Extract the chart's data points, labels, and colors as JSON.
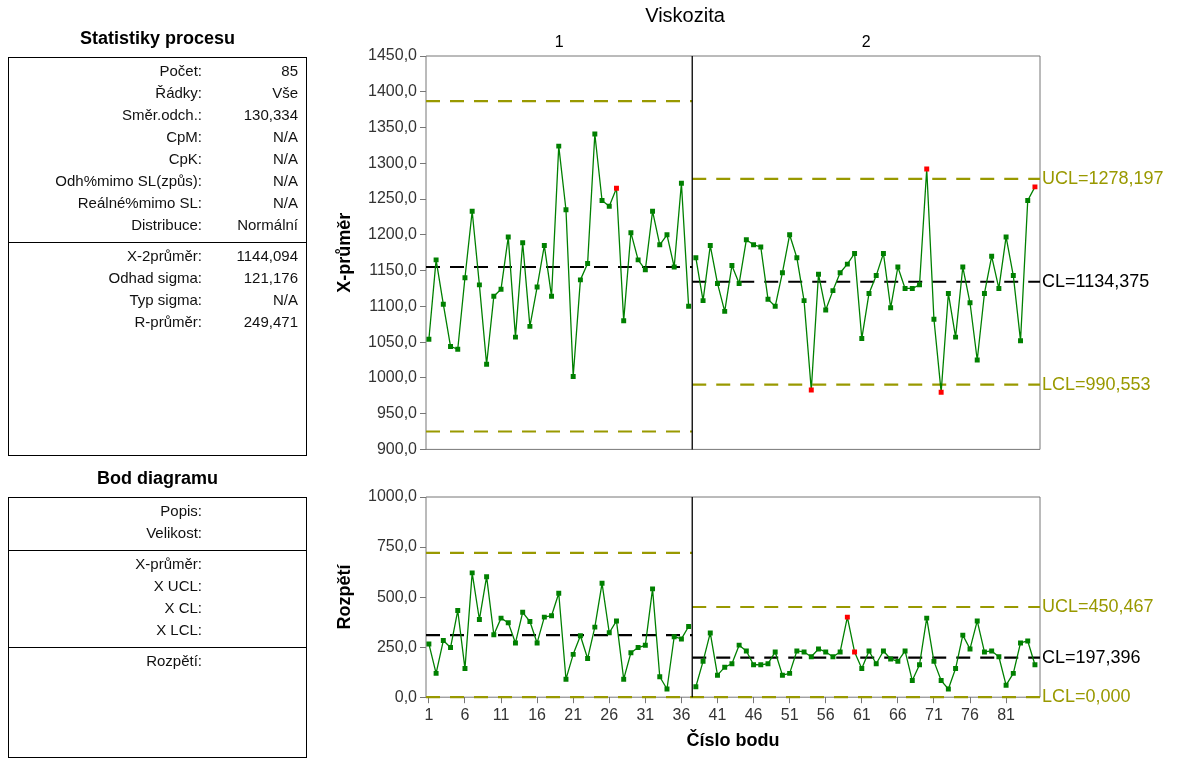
{
  "chart_data": [
    {
      "type": "other",
      "title": "Statistiky procesu",
      "annotations": [
        "Počet:",
        "85",
        "Řádky:",
        "Vše",
        "Směr.odch.:",
        "130,334",
        "CpM:",
        "N/A",
        "CpK:",
        "N/A",
        "Odh%mimo SL(způs):",
        "N/A",
        "Reálné%mimo SL:",
        "N/A",
        "Distribuce:",
        "Normální",
        "X-2průměr:",
        "1144,094",
        "Odhad sigma:",
        "121,176",
        "Typ sigma:",
        "N/A",
        "R-průměr:",
        "249,471"
      ]
    },
    {
      "type": "other",
      "title": "Bod diagramu",
      "annotations": [
        "Popis:",
        "Velikost:",
        "X-průměr:",
        "X UCL:",
        "X CL:",
        "X LCL:",
        "Rozpětí:"
      ]
    },
    {
      "type": "line",
      "title": "Viskozita",
      "ylabel": "X-průměr",
      "xlim": [
        0.6,
        85.7
      ],
      "ylim": [
        900,
        1450
      ],
      "xticks": [
        1,
        6,
        11,
        16,
        21,
        26,
        31,
        36,
        41,
        46,
        51,
        56,
        61,
        66,
        71,
        76,
        81
      ],
      "yticks": [
        {
          "value": 900,
          "label": "900,0"
        },
        {
          "value": 950,
          "label": "950,0"
        },
        {
          "value": 1000,
          "label": "1000,0"
        },
        {
          "value": 1050,
          "label": "1050,0"
        },
        {
          "value": 1100,
          "label": "1100,0"
        },
        {
          "value": 1150,
          "label": "1150,0"
        },
        {
          "value": 1200,
          "label": "1200,0"
        },
        {
          "value": 1250,
          "label": "1250,0"
        },
        {
          "value": 1300,
          "label": "1300,0"
        },
        {
          "value": 1350,
          "label": "1350,0"
        },
        {
          "value": 1400,
          "label": "1400,0"
        },
        {
          "value": 1450,
          "label": "1450,0"
        }
      ],
      "annotations": [
        "1",
        "2"
      ],
      "tick_labels": "y",
      "grid": false,
      "legend": false,
      "marker": "square",
      "line_style": "solid",
      "ref_lines": [
        {
          "axis": "x",
          "value": 37.5,
          "color": "#000000"
        }
      ],
      "series": [
        {
          "color": "#008000",
          "x": [
            1,
            2,
            3,
            4,
            5,
            6,
            7,
            8,
            9,
            10,
            11,
            12,
            13,
            14,
            15,
            16,
            17,
            18,
            19,
            20,
            21,
            22,
            23,
            24,
            25,
            26,
            27,
            28,
            29,
            30,
            31,
            32,
            33,
            34,
            35,
            36,
            37
          ],
          "values": [
            1054,
            1165,
            1103,
            1044,
            1040,
            1140,
            1233,
            1130,
            1019,
            1114,
            1124,
            1197,
            1057,
            1189,
            1072,
            1127,
            1185,
            1114,
            1324,
            1235,
            1002,
            1137,
            1160,
            1341,
            1248,
            1240,
            1265,
            1080,
            1203,
            1165,
            1151,
            1233,
            1186,
            1200,
            1155,
            1272,
            1100
          ],
          "colors": [
            "#008000",
            "#008000",
            "#008000",
            "#008000",
            "#008000",
            "#008000",
            "#008000",
            "#008000",
            "#008000",
            "#008000",
            "#008000",
            "#008000",
            "#008000",
            "#008000",
            "#008000",
            "#008000",
            "#008000",
            "#008000",
            "#008000",
            "#008000",
            "#008000",
            "#008000",
            "#008000",
            "#008000",
            "#008000",
            "#008000",
            "#ff0000",
            "#008000",
            "#008000",
            "#008000",
            "#008000",
            "#008000",
            "#008000",
            "#008000",
            "#008000",
            "#008000",
            "#008000"
          ]
        },
        {
          "color": "#008000",
          "x": [
            38,
            39,
            40,
            41,
            42,
            43,
            44,
            45,
            46,
            47,
            48,
            49,
            50,
            51,
            52,
            53,
            54,
            55,
            56,
            57,
            58,
            59,
            60,
            61,
            62,
            63,
            64,
            65,
            66,
            67,
            68,
            69,
            70,
            71,
            72,
            73,
            74,
            75,
            76,
            77,
            78,
            79,
            80,
            81,
            82,
            83,
            84,
            85
          ],
          "values": [
            1168,
            1108,
            1185,
            1132,
            1093,
            1157,
            1132,
            1193,
            1186,
            1183,
            1110,
            1100,
            1147,
            1200,
            1168,
            1108,
            983,
            1145,
            1095,
            1122,
            1147,
            1159,
            1174,
            1055,
            1118,
            1143,
            1174,
            1098,
            1155,
            1125,
            1125,
            1130,
            1292,
            1082,
            980,
            1118,
            1057,
            1155,
            1105,
            1025,
            1118,
            1170,
            1125,
            1197,
            1143,
            1052,
            1248,
            1267
          ],
          "colors": [
            "#008000",
            "#008000",
            "#008000",
            "#008000",
            "#008000",
            "#008000",
            "#008000",
            "#008000",
            "#008000",
            "#008000",
            "#008000",
            "#008000",
            "#008000",
            "#008000",
            "#008000",
            "#008000",
            "#ff0000",
            "#008000",
            "#008000",
            "#008000",
            "#008000",
            "#008000",
            "#008000",
            "#008000",
            "#008000",
            "#008000",
            "#008000",
            "#008000",
            "#008000",
            "#008000",
            "#008000",
            "#008000",
            "#ff0000",
            "#008000",
            "#ff0000",
            "#008000",
            "#008000",
            "#008000",
            "#008000",
            "#008000",
            "#008000",
            "#008000",
            "#008000",
            "#008000",
            "#008000",
            "#008000",
            "#008000",
            "#ff0000"
          ]
        },
        {
          "type": "line",
          "color": "#999900",
          "marker": "none",
          "line_style": "dashed",
          "x": [
            0.6,
            37.5
          ],
          "values": [
            1387,
            1387
          ]
        },
        {
          "type": "line",
          "color": "#000000",
          "marker": "none",
          "line_style": "dashed",
          "x": [
            0.6,
            37.5
          ],
          "values": [
            1155,
            1155
          ]
        },
        {
          "type": "line",
          "color": "#999900",
          "marker": "none",
          "line_style": "dashed",
          "x": [
            0.6,
            37.5
          ],
          "values": [
            925,
            925
          ]
        },
        {
          "type": "line",
          "name": "UCL=1278,197",
          "color": "#999900",
          "marker": "none",
          "line_style": "dashed",
          "x": [
            37.5,
            85.7
          ],
          "values": [
            1278.197,
            1278.197
          ]
        },
        {
          "type": "line",
          "name": "CL=1134,375",
          "color": "#000000",
          "marker": "none",
          "line_style": "dashed",
          "x": [
            37.5,
            85.7
          ],
          "values": [
            1134.375,
            1134.375
          ]
        },
        {
          "type": "line",
          "name": "LCL=990,553",
          "color": "#999900",
          "marker": "none",
          "line_style": "dashed",
          "x": [
            37.5,
            85.7
          ],
          "values": [
            990.553,
            990.553
          ]
        }
      ]
    },
    {
      "type": "line",
      "ylabel": "Rozpětí",
      "xlabel": "Číslo bodu",
      "xlim": [
        0.6,
        85.7
      ],
      "ylim": [
        0,
        1000
      ],
      "xticks": [
        1,
        6,
        11,
        16,
        21,
        26,
        31,
        36,
        41,
        46,
        51,
        56,
        61,
        66,
        71,
        76,
        81
      ],
      "yticks": [
        {
          "value": 0,
          "label": "0,0"
        },
        {
          "value": 250,
          "label": "250,0"
        },
        {
          "value": 500,
          "label": "500,0"
        },
        {
          "value": 750,
          "label": "750,0"
        },
        {
          "value": 1000,
          "label": "1000,0"
        }
      ],
      "grid": false,
      "legend": false,
      "marker": "square",
      "line_style": "solid",
      "ref_lines": [
        {
          "axis": "x",
          "value": 37.5,
          "color": "#000000"
        }
      ],
      "series": [
        {
          "color": "#008000",
          "x": [
            1,
            2,
            3,
            4,
            5,
            6,
            7,
            8,
            9,
            10,
            11,
            12,
            13,
            14,
            15,
            16,
            17,
            18,
            19,
            20,
            21,
            22,
            23,
            24,
            25,
            26,
            27,
            28,
            29,
            30,
            31,
            32,
            33,
            34,
            35,
            36,
            37
          ],
          "values": [
            266,
            119,
            283,
            248,
            433,
            143,
            621,
            388,
            602,
            312,
            395,
            372,
            271,
            424,
            378,
            271,
            400,
            407,
            519,
            90,
            214,
            307,
            193,
            350,
            569,
            322,
            381,
            90,
            222,
            248,
            259,
            541,
            102,
            41,
            302,
            291,
            353
          ]
        },
        {
          "color": "#008000",
          "x": [
            38,
            39,
            40,
            41,
            42,
            43,
            44,
            45,
            46,
            47,
            48,
            49,
            50,
            51,
            52,
            53,
            54,
            55,
            56,
            57,
            58,
            59,
            60,
            61,
            62,
            63,
            64,
            65,
            66,
            67,
            68,
            69,
            70,
            71,
            72,
            73,
            74,
            75,
            76,
            77,
            78,
            79,
            80,
            81,
            82,
            83,
            84,
            85
          ],
          "values": [
            52,
            179,
            321,
            110,
            150,
            167,
            260,
            231,
            162,
            162,
            167,
            226,
            110,
            119,
            231,
            226,
            202,
            241,
            226,
            202,
            226,
            400,
            226,
            143,
            231,
            167,
            231,
            191,
            179,
            231,
            83,
            162,
            395,
            179,
            83,
            41,
            143,
            310,
            241,
            381,
            226,
            231,
            202,
            60,
            119,
            271,
            281,
            162
          ],
          "colors": [
            "#008000",
            "#008000",
            "#008000",
            "#008000",
            "#008000",
            "#008000",
            "#008000",
            "#008000",
            "#008000",
            "#008000",
            "#008000",
            "#008000",
            "#008000",
            "#008000",
            "#008000",
            "#008000",
            "#008000",
            "#008000",
            "#008000",
            "#008000",
            "#008000",
            "#ff0000",
            "#ff0000",
            "#008000",
            "#008000",
            "#008000",
            "#008000",
            "#008000",
            "#008000",
            "#008000",
            "#008000",
            "#008000",
            "#008000",
            "#008000",
            "#008000",
            "#008000",
            "#008000",
            "#008000",
            "#008000",
            "#008000",
            "#008000",
            "#008000",
            "#008000",
            "#008000",
            "#008000",
            "#008000",
            "#008000",
            "#008000"
          ]
        },
        {
          "type": "line",
          "color": "#999900",
          "marker": "none",
          "line_style": "dashed",
          "x": [
            0.6,
            37.5
          ],
          "values": [
            721,
            721
          ]
        },
        {
          "type": "line",
          "color": "#000000",
          "marker": "none",
          "line_style": "dashed",
          "x": [
            0.6,
            37.5
          ],
          "values": [
            310,
            310
          ]
        },
        {
          "type": "line",
          "name": "UCL=450,467",
          "color": "#999900",
          "marker": "none",
          "line_style": "dashed",
          "x": [
            37.5,
            85.7
          ],
          "values": [
            450.467,
            450.467
          ]
        },
        {
          "type": "line",
          "name": "CL=197,396",
          "color": "#000000",
          "marker": "none",
          "line_style": "dashed",
          "x": [
            37.5,
            85.7
          ],
          "values": [
            197.396,
            197.396
          ]
        },
        {
          "type": "line",
          "name": "LCL=0,000",
          "color": "#999900",
          "marker": "none",
          "line_style": "dashed",
          "x": [
            0.6,
            85.7
          ],
          "values": [
            0,
            0
          ]
        }
      ]
    }
  ]
}
